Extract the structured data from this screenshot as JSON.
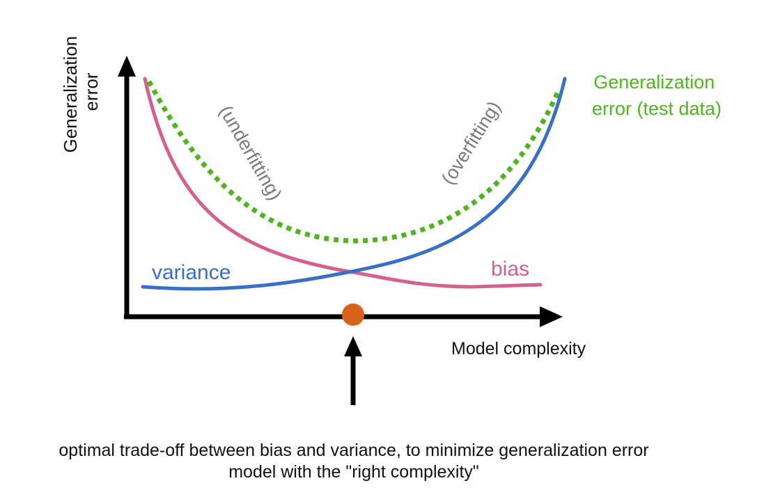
{
  "y_axis_label": [
    "Generalization",
    "error"
  ],
  "x_axis_label": "Model complexity",
  "curves": {
    "test_error_label": [
      "Generalization",
      "error (test data)"
    ],
    "variance_label": "variance",
    "bias_label": "bias"
  },
  "regions": {
    "underfitting_label": "(underfitting)",
    "overfitting_label": "(overfitting)"
  },
  "caption": {
    "line1": "optimal trade-off between bias and variance, to minimize generalization error",
    "line2": "model with the \"right complexity\""
  },
  "colors": {
    "axes": "#000000",
    "bias": "#d5608e",
    "variance": "#3a6fc6",
    "test_error": "#4fb51f",
    "optimum_marker": "#d9621b",
    "region_labels": "#7a7a7a",
    "caption_text": "#111111"
  }
}
